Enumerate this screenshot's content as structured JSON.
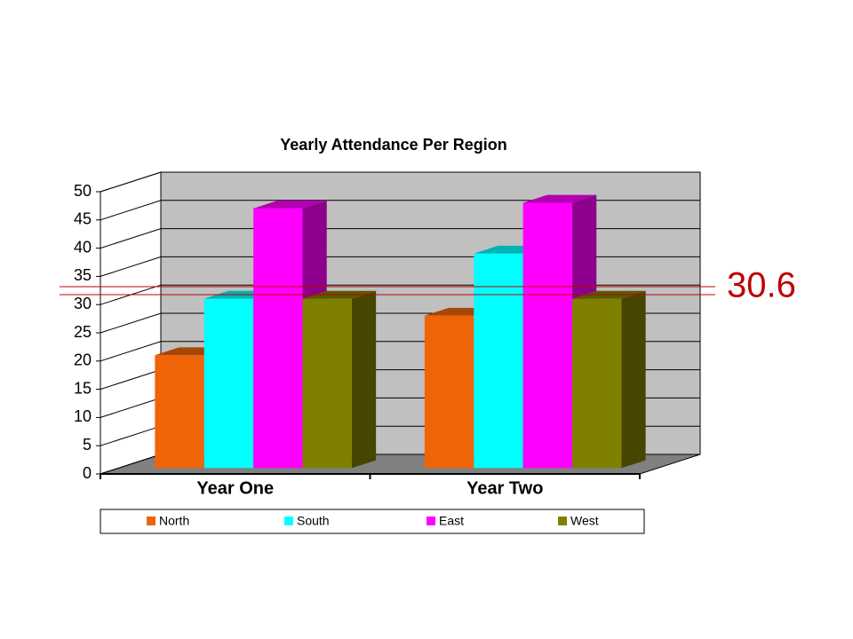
{
  "chart_data": {
    "type": "bar3d",
    "title": "Yearly Attendance Per Region",
    "categories": [
      "Year One",
      "Year Two"
    ],
    "series": [
      {
        "name": "North",
        "color": "#f06408",
        "values": [
          20,
          27
        ]
      },
      {
        "name": "South",
        "color": "#00ffff",
        "values": [
          30,
          38
        ]
      },
      {
        "name": "East",
        "color": "#ff00ff",
        "values": [
          46,
          47
        ]
      },
      {
        "name": "West",
        "color": "#808000",
        "values": [
          30,
          30
        ]
      }
    ],
    "ylim": [
      0,
      50
    ],
    "yticks": [
      0,
      5,
      10,
      15,
      20,
      25,
      30,
      35,
      40,
      45,
      50
    ],
    "grid": true,
    "legend": "bottom",
    "annotation": "30.6"
  }
}
